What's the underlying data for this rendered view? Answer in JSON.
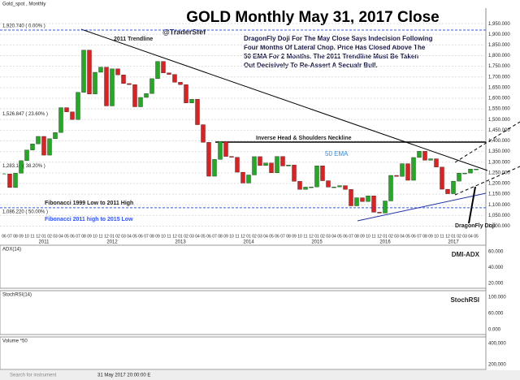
{
  "chart_data": {
    "type": "candlestick",
    "title": "GOLD Monthly May 31, 2017 Close",
    "subtitle": "@TraderStef",
    "header": "Gold_spot , Monthly",
    "commentary": [
      "DragonFly Doji For The May Close Says Indecision Following",
      "Four Months Of Lateral Chop.  Price Has Closed Above The",
      "50 EMA For 2 Months.  The 2011 Trendline Must Be Taken",
      "Out Decisively To Re-Assert A Secualr Bull."
    ],
    "annotations": {
      "trendline": "2011 Trendline",
      "neckline": "Inverse Head & Shoulders Neckline",
      "ema": "50 EMA",
      "fib1": "Fibonacci 1999 Low to 2011 High",
      "fib2": "Fibonacci 2011 high to 2015 Low",
      "doji": "DragonFly Doji",
      "fib_top": "1,920.740 ( 0.00% )",
      "fib_236": "1,526.847 ( 23.60% )",
      "fib_382": "1,283.16 ( 38.20% )",
      "fib_50": "1,086.220 ( 50.00% )"
    },
    "categories": [
      "06",
      "07",
      "08",
      "09",
      "10",
      "11",
      "12",
      "01",
      "02",
      "03",
      "04",
      "05",
      "06",
      "07",
      "08",
      "09",
      "10",
      "11",
      "12",
      "01",
      "02",
      "03",
      "04",
      "05",
      "06",
      "07",
      "08",
      "09",
      "10",
      "11",
      "12",
      "01",
      "02",
      "03",
      "04",
      "05",
      "06",
      "07",
      "08",
      "09",
      "10",
      "11",
      "12",
      "01",
      "02",
      "03",
      "04",
      "05",
      "06",
      "07",
      "08",
      "09",
      "10",
      "11",
      "12",
      "01",
      "02",
      "03",
      "04",
      "05",
      "06",
      "07",
      "08",
      "09",
      "10",
      "11",
      "12",
      "01",
      "02",
      "03",
      "04",
      "05",
      "06",
      "07",
      "08",
      "09",
      "10",
      "11",
      "12",
      "01",
      "02",
      "03",
      "04",
      "05"
    ],
    "years": [
      "2011",
      "2012",
      "2013",
      "2014",
      "2015",
      "2016",
      "2017"
    ],
    "closes": [
      1245,
      1181,
      1248,
      1307,
      1357,
      1386,
      1421,
      1333,
      1410,
      1439,
      1556,
      1536,
      1500,
      1628,
      1826,
      1620,
      1722,
      1746,
      1564,
      1738,
      1710,
      1669,
      1664,
      1560,
      1604,
      1622,
      1692,
      1773,
      1719,
      1712,
      1675,
      1664,
      1578,
      1595,
      1476,
      1393,
      1234,
      1313,
      1396,
      1327,
      1323,
      1253,
      1202,
      1240,
      1326,
      1284,
      1296,
      1250,
      1327,
      1282,
      1287,
      1210,
      1172,
      1183,
      1184,
      1283,
      1213,
      1183,
      1184,
      1190,
      1172,
      1095,
      1133,
      1115,
      1142,
      1065,
      1061,
      1118,
      1238,
      1233,
      1293,
      1215,
      1322,
      1351,
      1309,
      1316,
      1277,
      1173,
      1152,
      1211,
      1249,
      1249,
      1268,
      1268
    ],
    "up_color": "#22aa22",
    "down_color": "#e02020",
    "ylim": [
      975,
      1985
    ],
    "yticks": [
      {
        "value": 1000,
        "label": "1,000.000"
      },
      {
        "value": 1050,
        "label": "1,050.000"
      },
      {
        "value": 1100,
        "label": "1,100.000"
      },
      {
        "value": 1150,
        "label": "1,150.000"
      },
      {
        "value": 1200,
        "label": "1,200.000"
      },
      {
        "value": 1250,
        "label": "1,250.000"
      },
      {
        "value": 1300,
        "label": "1,300.000"
      },
      {
        "value": 1350,
        "label": "1,350.000"
      },
      {
        "value": 1400,
        "label": "1,400.000"
      },
      {
        "value": 1450,
        "label": "1,450.000"
      },
      {
        "value": 1500,
        "label": "1,500.000"
      },
      {
        "value": 1550,
        "label": "1,550.000"
      },
      {
        "value": 1600,
        "label": "1,600.000"
      },
      {
        "value": 1650,
        "label": "1,650.000"
      },
      {
        "value": 1700,
        "label": "1,700.000"
      },
      {
        "value": 1750,
        "label": "1,750.000"
      },
      {
        "value": 1800,
        "label": "1,800.000"
      },
      {
        "value": 1850,
        "label": "1,850.000"
      },
      {
        "value": 1900,
        "label": "1,900.000"
      },
      {
        "value": 1950,
        "label": "1,950.000"
      }
    ],
    "grid": true,
    "panels": [
      {
        "name": "ADX(14)",
        "tag": "DMI-ADX",
        "ticks": [
          "60.000",
          "40.000",
          "20.000"
        ]
      },
      {
        "name": "StochRSI(14)",
        "tag": "StochRSI",
        "ticks": [
          "100.000",
          "60.000",
          "0.000"
        ]
      },
      {
        "name": "Volume *50",
        "ticks": [
          "400,000",
          "200,000"
        ]
      }
    ],
    "status": [
      "Search for instrument",
      "31 May 2017 20:00:00 E"
    ]
  }
}
